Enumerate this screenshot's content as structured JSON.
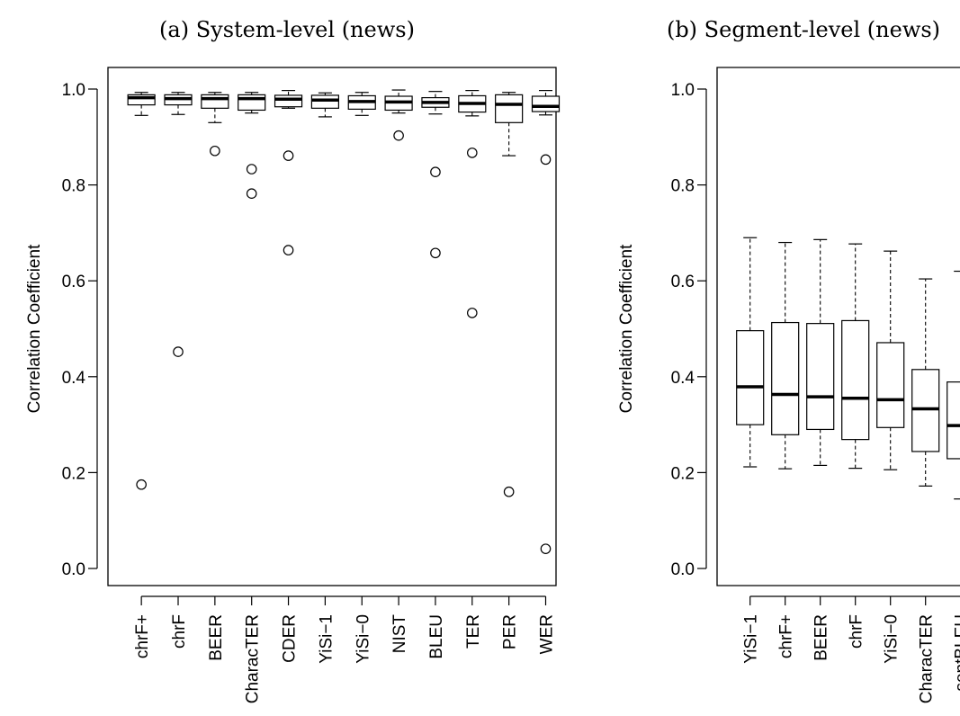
{
  "chart_data": [
    {
      "type": "boxplot",
      "title": "(a) System-level (news)",
      "ylabel": "Correlation Coefficient",
      "xlabel": "",
      "ylim": [
        0.0,
        1.0
      ],
      "yticks": [
        "0.0",
        "0.2",
        "0.4",
        "0.6",
        "0.8",
        "1.0"
      ],
      "categories": [
        "chrF+",
        "chrF",
        "BEER",
        "CharacTER",
        "CDER",
        "YiSi−1",
        "YiSi−0",
        "NIST",
        "BLEU",
        "TER",
        "PER",
        "WER"
      ],
      "boxes": [
        {
          "whislo": 0.945,
          "q1": 0.967,
          "med": 0.982,
          "q3": 0.988,
          "whishi": 0.993,
          "outliers": [
            0.175
          ]
        },
        {
          "whislo": 0.947,
          "q1": 0.967,
          "med": 0.98,
          "q3": 0.988,
          "whishi": 0.993,
          "outliers": [
            0.452
          ]
        },
        {
          "whislo": 0.93,
          "q1": 0.96,
          "med": 0.98,
          "q3": 0.988,
          "whishi": 0.993,
          "outliers": [
            0.871
          ]
        },
        {
          "whislo": 0.95,
          "q1": 0.956,
          "med": 0.98,
          "q3": 0.988,
          "whishi": 0.993,
          "outliers": [
            0.833,
            0.782
          ]
        },
        {
          "whislo": 0.96,
          "q1": 0.963,
          "med": 0.979,
          "q3": 0.987,
          "whishi": 0.997,
          "outliers": [
            0.861,
            0.664
          ]
        },
        {
          "whislo": 0.942,
          "q1": 0.96,
          "med": 0.977,
          "q3": 0.987,
          "whishi": 0.992,
          "outliers": []
        },
        {
          "whislo": 0.945,
          "q1": 0.958,
          "med": 0.974,
          "q3": 0.986,
          "whishi": 0.993,
          "outliers": []
        },
        {
          "whislo": 0.95,
          "q1": 0.956,
          "med": 0.973,
          "q3": 0.985,
          "whishi": 0.998,
          "outliers": [
            0.903
          ]
        },
        {
          "whislo": 0.948,
          "q1": 0.962,
          "med": 0.972,
          "q3": 0.982,
          "whishi": 0.995,
          "outliers": [
            0.827,
            0.658
          ]
        },
        {
          "whislo": 0.944,
          "q1": 0.952,
          "med": 0.97,
          "q3": 0.986,
          "whishi": 0.997,
          "outliers": [
            0.867,
            0.533
          ]
        },
        {
          "whislo": 0.861,
          "q1": 0.93,
          "med": 0.968,
          "q3": 0.988,
          "whishi": 0.993,
          "outliers": [
            0.16
          ]
        },
        {
          "whislo": 0.946,
          "q1": 0.953,
          "med": 0.964,
          "q3": 0.985,
          "whishi": 0.997,
          "outliers": [
            0.853,
            0.041
          ]
        }
      ]
    },
    {
      "type": "boxplot",
      "title": "(b) Segment-level (news)",
      "ylabel": "Correlation Coefficient",
      "xlabel": "",
      "ylim": [
        0.0,
        1.0
      ],
      "yticks": [
        "0.0",
        "0.2",
        "0.4",
        "0.6",
        "0.8",
        "1.0"
      ],
      "categories": [
        "YiSi−1",
        "chrF+",
        "BEER",
        "chrF",
        "YiSi−0",
        "CharacTER",
        "sentBLEU"
      ],
      "boxes": [
        {
          "whislo": 0.212,
          "q1": 0.3,
          "med": 0.379,
          "q3": 0.496,
          "whishi": 0.69,
          "outliers": []
        },
        {
          "whislo": 0.208,
          "q1": 0.279,
          "med": 0.363,
          "q3": 0.513,
          "whishi": 0.68,
          "outliers": []
        },
        {
          "whislo": 0.215,
          "q1": 0.29,
          "med": 0.358,
          "q3": 0.511,
          "whishi": 0.686,
          "outliers": []
        },
        {
          "whislo": 0.209,
          "q1": 0.269,
          "med": 0.355,
          "q3": 0.517,
          "whishi": 0.677,
          "outliers": []
        },
        {
          "whislo": 0.206,
          "q1": 0.294,
          "med": 0.352,
          "q3": 0.471,
          "whishi": 0.662,
          "outliers": []
        },
        {
          "whislo": 0.172,
          "q1": 0.244,
          "med": 0.333,
          "q3": 0.415,
          "whishi": 0.604,
          "outliers": []
        },
        {
          "whislo": 0.145,
          "q1": 0.229,
          "med": 0.298,
          "q3": 0.389,
          "whishi": 0.62,
          "outliers": []
        }
      ]
    }
  ]
}
